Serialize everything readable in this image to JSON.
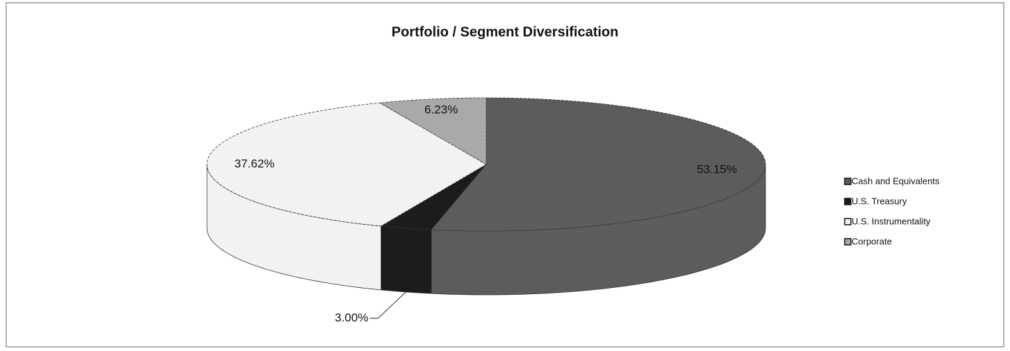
{
  "chart_data": {
    "type": "pie",
    "title": "Portfolio / Segment Diversification",
    "categories": [
      "Cash and Equivalents",
      "U.S. Treasury",
      "U.S. Instrumentality",
      "Corporate"
    ],
    "values": [
      53.15,
      3.0,
      37.62,
      6.23
    ],
    "value_labels": [
      "53.15%",
      "3.00%",
      "37.62%",
      "6.23%"
    ],
    "colors": [
      "#5c5c5c",
      "#1c1c1c",
      "#f2f2f2",
      "#a9a9a9"
    ],
    "legend": "right"
  }
}
